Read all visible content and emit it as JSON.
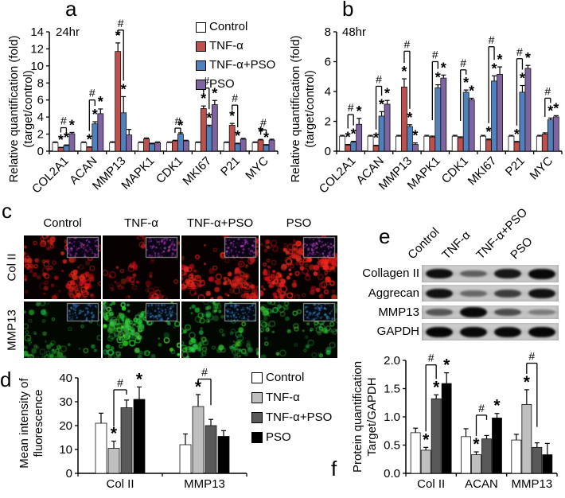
{
  "annotations": {
    "star": "*",
    "hash": "#"
  },
  "colors": {
    "control": "#FFFFFF",
    "tnf": "#C0504D",
    "tnf_pso": "#4F81BD",
    "pso": "#8064A2",
    "gray_light": "#BFBFBF",
    "gray_dark": "#595959",
    "black": "#000000",
    "red_channel": "#CC2014",
    "green_channel": "#2F9E3F"
  },
  "panels": {
    "a": {
      "letter": "a"
    },
    "b": {
      "letter": "b"
    },
    "c": {
      "letter": "c",
      "conditions": [
        "Control",
        "TNF-α",
        "TNF-α+PSO",
        "PSO"
      ],
      "rows": [
        {
          "label": "Col II",
          "channel": "red",
          "levels": [
            21,
            10.5,
            27.5,
            31
          ]
        },
        {
          "label": "MMP13",
          "channel": "green",
          "levels": [
            12,
            28,
            20,
            15.5
          ]
        }
      ]
    },
    "d": {
      "letter": "d"
    },
    "e": {
      "letter": "e",
      "conditions": [
        "Control",
        "TNF-α",
        "TNF-α+PSO",
        "PSO"
      ],
      "blots": [
        {
          "label": "Collagen II",
          "bands": [
            0.92,
            0.5,
            0.88,
            0.95
          ]
        },
        {
          "label": "Aggrecan",
          "bands": [
            0.9,
            0.45,
            0.68,
            0.9
          ]
        },
        {
          "label": "MMP13",
          "bands": [
            0.55,
            0.95,
            0.6,
            0.35
          ]
        },
        {
          "label": "GAPDH",
          "bands": [
            0.97,
            0.95,
            0.95,
            0.97
          ]
        }
      ]
    },
    "f": {
      "letter": "f"
    }
  },
  "chart_data": [
    {
      "panel": "a",
      "type": "bar",
      "inside_label": "24hr",
      "ylabel_line1": "Relative quantification (fold)",
      "ylabel_line2": "(target/control)",
      "ylim": [
        0,
        14
      ],
      "ytick_step": 2,
      "tick_decimals": 0,
      "legend_position": "top-right-inside",
      "categories": [
        "COL2A1",
        "ACAN",
        "MMP13",
        "MAPK1",
        "CDK1",
        "MKI67",
        "P21",
        "MYC"
      ],
      "series": [
        {
          "name": "Control",
          "color": "#FFFFFF",
          "values": [
            1,
            1,
            1,
            1,
            1,
            1,
            1,
            1
          ],
          "errors": [
            0.08,
            0.08,
            0.1,
            0.08,
            0.08,
            0.08,
            0.08,
            0.08
          ],
          "stars": [
            0,
            0,
            0,
            0,
            0,
            0,
            0,
            0
          ]
        },
        {
          "name": "TNF-α",
          "color": "#C0504D",
          "values": [
            0.4,
            0.45,
            11.7,
            1.45,
            1.2,
            5.0,
            3.05,
            1.3
          ],
          "errors": [
            0.05,
            0.05,
            1.0,
            0.1,
            0.08,
            0.3,
            0.2,
            0.08
          ],
          "stars": [
            1,
            1,
            1,
            0,
            0,
            1,
            1,
            1
          ]
        },
        {
          "name": "TNF-α+PSO",
          "color": "#4F81BD",
          "values": [
            0.65,
            3.2,
            4.5,
            0.85,
            2.0,
            2.9,
            0.85,
            0.7
          ],
          "errors": [
            0.08,
            0.25,
            1.9,
            0.08,
            0.15,
            0.15,
            0.08,
            0.07
          ],
          "stars": [
            1,
            1,
            1,
            0,
            1,
            1,
            1,
            1
          ]
        },
        {
          "name": "PSO",
          "color": "#8064A2",
          "values": [
            2.05,
            4.4,
            1.9,
            1.0,
            1.2,
            5.45,
            1.4,
            1.3
          ],
          "errors": [
            0.15,
            0.55,
            0.65,
            0.08,
            0.08,
            0.5,
            0.1,
            0.1
          ],
          "stars": [
            1,
            1,
            0,
            0,
            0,
            1,
            0,
            0
          ]
        }
      ],
      "brackets": [
        {
          "cat": 0,
          "from": 1,
          "to": 2,
          "top": 2.75,
          "label": "#"
        },
        {
          "cat": 1,
          "from": 1,
          "to": 2,
          "top": 6.0,
          "label": "#"
        },
        {
          "cat": 2,
          "from": 1,
          "to": 2,
          "top": 14.2,
          "label": "#"
        },
        {
          "cat": 4,
          "from": 1,
          "to": 2,
          "top": 2.7,
          "label": "#"
        },
        {
          "cat": 5,
          "from": 1,
          "to": 2,
          "top": 7.4,
          "label": "#"
        },
        {
          "cat": 6,
          "from": 1,
          "to": 2,
          "top": 5.4,
          "label": "#"
        },
        {
          "cat": 7,
          "from": 1,
          "to": 2,
          "top": 2.5,
          "label": "#"
        }
      ]
    },
    {
      "panel": "b",
      "type": "bar",
      "inside_label": "48hr",
      "ylabel_line1": "Relative quantification (fold)",
      "ylabel_line2": "(target/control)",
      "ylim": [
        0,
        8
      ],
      "ytick_step": 2,
      "tick_decimals": 0,
      "legend_position": "none",
      "categories": [
        "COL2A1",
        "ACAN",
        "MMP13",
        "MAPK1",
        "CDK1",
        "MKI67",
        "P21",
        "MYC"
      ],
      "series": [
        {
          "name": "Control",
          "color": "#FFFFFF",
          "values": [
            1,
            1,
            1,
            1,
            1,
            1,
            1,
            1
          ],
          "errors": [
            0.06,
            0.06,
            0.06,
            0.06,
            0.06,
            0.06,
            0.06,
            0.06
          ],
          "stars": [
            0,
            0,
            0,
            0,
            0,
            0,
            0,
            0
          ]
        },
        {
          "name": "TNF-α",
          "color": "#C0504D",
          "values": [
            0.4,
            0.35,
            4.3,
            0.95,
            0.9,
            0.75,
            0.6,
            1.15
          ],
          "errors": [
            0.05,
            0.04,
            0.55,
            0.06,
            0.06,
            0.06,
            0.05,
            0.08
          ],
          "stars": [
            1,
            1,
            1,
            0,
            0,
            1,
            1,
            0
          ]
        },
        {
          "name": "TNF-α+PSO",
          "color": "#4F81BD",
          "values": [
            0.6,
            2.35,
            1.65,
            4.25,
            3.95,
            4.7,
            3.95,
            2.1
          ],
          "errors": [
            0.06,
            0.3,
            0.12,
            0.2,
            0.15,
            0.35,
            0.45,
            0.12
          ],
          "stars": [
            1,
            1,
            1,
            1,
            1,
            1,
            1,
            1
          ]
        },
        {
          "name": "PSO",
          "color": "#8064A2",
          "values": [
            1.8,
            3.15,
            0.45,
            4.9,
            3.45,
            5.15,
            5.55,
            2.3
          ],
          "errors": [
            0.4,
            0.25,
            0.1,
            0.2,
            0.1,
            0.5,
            0.2,
            0.08
          ],
          "stars": [
            1,
            1,
            1,
            1,
            1,
            1,
            1,
            1
          ]
        }
      ],
      "brackets": [
        {
          "cat": 0,
          "from": 1,
          "to": 2,
          "top": 2.45,
          "label": "#"
        },
        {
          "cat": 1,
          "from": 1,
          "to": 2,
          "top": 4.35,
          "label": "#"
        },
        {
          "cat": 2,
          "from": 1,
          "to": 2,
          "top": 6.7,
          "label": "#"
        },
        {
          "cat": 3,
          "from": 1,
          "to": 2,
          "top": 6.0,
          "label": "#"
        },
        {
          "cat": 4,
          "from": 1,
          "to": 2,
          "top": 5.45,
          "label": "#"
        },
        {
          "cat": 5,
          "from": 1,
          "to": 2,
          "top": 7.0,
          "label": "#"
        },
        {
          "cat": 6,
          "from": 1,
          "to": 2,
          "top": 6.2,
          "label": "#"
        },
        {
          "cat": 7,
          "from": 1,
          "to": 2,
          "top": 3.55,
          "label": "#"
        }
      ]
    },
    {
      "panel": "d",
      "type": "bar",
      "inside_label": "",
      "ylabel_line1": "Mean intensity of",
      "ylabel_line2": "fluorescence",
      "ylim": [
        0,
        40
      ],
      "ytick_step": 10,
      "tick_decimals": 0,
      "legend_position": "right-outside",
      "categories": [
        "Col II",
        "MMP13"
      ],
      "series": [
        {
          "name": "Control",
          "color": "#FFFFFF",
          "values": [
            21,
            12
          ],
          "errors": [
            4.2,
            4.5
          ],
          "stars": [
            0,
            0
          ]
        },
        {
          "name": "TNF-α",
          "color": "#BFBFBF",
          "values": [
            10.5,
            28
          ],
          "errors": [
            3.0,
            5.0
          ],
          "stars": [
            1,
            1
          ]
        },
        {
          "name": "TNF-α+PSO",
          "color": "#595959",
          "values": [
            27.5,
            20
          ],
          "errors": [
            3.2,
            2.6
          ],
          "stars": [
            0,
            0
          ]
        },
        {
          "name": "PSO",
          "color": "#000000",
          "values": [
            31,
            15.5
          ],
          "errors": [
            5.2,
            2.4
          ],
          "stars": [
            1,
            0
          ]
        }
      ],
      "brackets": [
        {
          "cat": 0,
          "from": 1,
          "to": 2,
          "top": 35,
          "label": "#"
        },
        {
          "cat": 1,
          "from": 1,
          "to": 2,
          "top": 39.5,
          "label": "#"
        }
      ]
    },
    {
      "panel": "f",
      "type": "bar",
      "inside_label": "",
      "ylabel_line1": "Protein quantification",
      "ylabel_line2": "Target/GAPDH",
      "ylim": [
        0,
        2
      ],
      "ytick_step": 0.5,
      "tick_decimals": 1,
      "legend_position": "none",
      "categories": [
        "Col II",
        "ACAN",
        "MMP13"
      ],
      "series": [
        {
          "name": "Control",
          "color": "#FFFFFF",
          "values": [
            0.72,
            0.65,
            0.59
          ],
          "errors": [
            0.08,
            0.14,
            0.1
          ],
          "stars": [
            0,
            0,
            0
          ]
        },
        {
          "name": "TNF-α",
          "color": "#BFBFBF",
          "values": [
            0.41,
            0.33,
            1.22
          ],
          "errors": [
            0.05,
            0.05,
            0.26
          ],
          "stars": [
            1,
            1,
            1
          ]
        },
        {
          "name": "TNF-α+PSO",
          "color": "#595959",
          "values": [
            1.32,
            0.61,
            0.46
          ],
          "errors": [
            0.07,
            0.06,
            0.08
          ],
          "stars": [
            1,
            0,
            0
          ]
        },
        {
          "name": "PSO",
          "color": "#000000",
          "values": [
            1.59,
            0.98,
            0.33
          ],
          "errors": [
            0.19,
            0.08,
            0.2
          ],
          "stars": [
            1,
            1,
            0
          ]
        }
      ],
      "brackets": [
        {
          "cat": 0,
          "from": 1,
          "to": 2,
          "top": 1.92,
          "label": "#"
        },
        {
          "cat": 1,
          "from": 1,
          "to": 2,
          "top": 1.03,
          "label": "#"
        },
        {
          "cat": 2,
          "from": 1,
          "to": 2,
          "top": 1.95,
          "label": "#"
        }
      ]
    }
  ]
}
